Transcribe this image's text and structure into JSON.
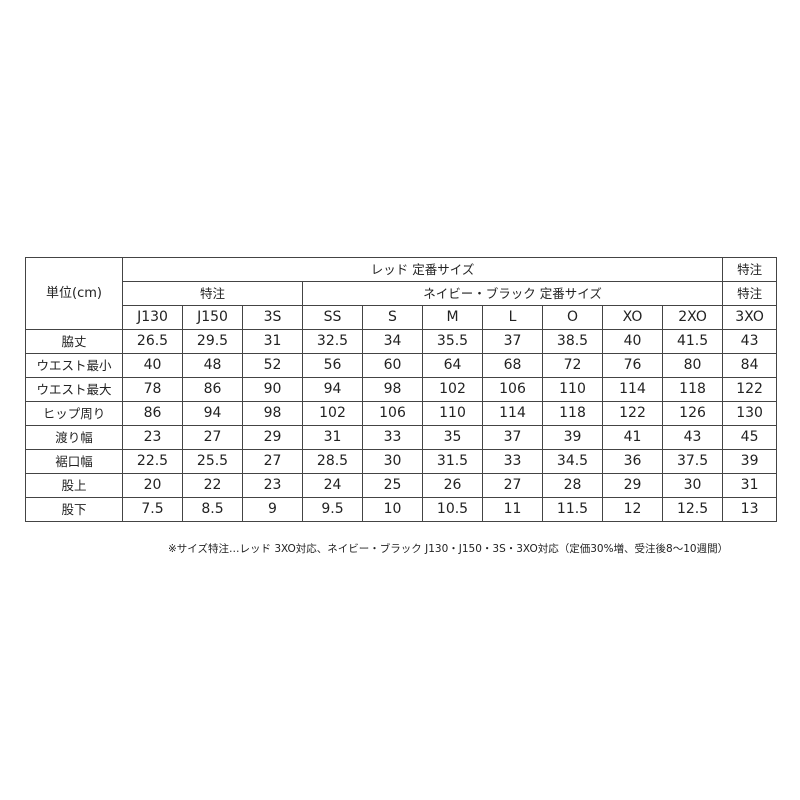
{
  "table": {
    "unit_label": "単位(cm)",
    "group_red": "レッド  定番サイズ",
    "group_special_top": "特注",
    "group_special_left": "特注",
    "group_navy": "ネイビー・ブラック  定番サイズ",
    "group_special_right": "特注",
    "sizes": [
      "J130",
      "J150",
      "3S",
      "SS",
      "S",
      "M",
      "L",
      "O",
      "XO",
      "2XO",
      "3XO"
    ],
    "rows": [
      {
        "label": "脇丈",
        "values": [
          "26.5",
          "29.5",
          "31",
          "32.5",
          "34",
          "35.5",
          "37",
          "38.5",
          "40",
          "41.5",
          "43"
        ]
      },
      {
        "label": "ウエスト最小",
        "values": [
          "40",
          "48",
          "52",
          "56",
          "60",
          "64",
          "68",
          "72",
          "76",
          "80",
          "84"
        ]
      },
      {
        "label": "ウエスト最大",
        "values": [
          "78",
          "86",
          "90",
          "94",
          "98",
          "102",
          "106",
          "110",
          "114",
          "118",
          "122"
        ]
      },
      {
        "label": "ヒップ周り",
        "values": [
          "86",
          "94",
          "98",
          "102",
          "106",
          "110",
          "114",
          "118",
          "122",
          "126",
          "130"
        ]
      },
      {
        "label": "渡り幅",
        "values": [
          "23",
          "27",
          "29",
          "31",
          "33",
          "35",
          "37",
          "39",
          "41",
          "43",
          "45"
        ]
      },
      {
        "label": "裾口幅",
        "values": [
          "22.5",
          "25.5",
          "27",
          "28.5",
          "30",
          "31.5",
          "33",
          "34.5",
          "36",
          "37.5",
          "39"
        ]
      },
      {
        "label": "股上",
        "values": [
          "20",
          "22",
          "23",
          "24",
          "25",
          "26",
          "27",
          "28",
          "29",
          "30",
          "31"
        ]
      },
      {
        "label": "股下",
        "values": [
          "7.5",
          "8.5",
          "9",
          "9.5",
          "10",
          "10.5",
          "11",
          "11.5",
          "12",
          "12.5",
          "13"
        ]
      }
    ]
  },
  "footnote": "※サイズ特注…レッド 3XO対応、ネイビー・ブラック J130・J150・3S・3XO対応（定価30%増、受注後8～10週間）"
}
